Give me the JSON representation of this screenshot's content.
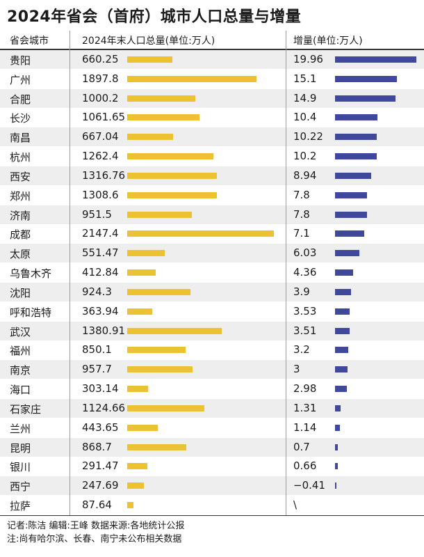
{
  "title": "2024年省会（首府）城市人口总量与增量",
  "headers": {
    "city": "省会城市",
    "population": "2024年末人口总量(单位:万人)",
    "increase": "增量(单位:万人)"
  },
  "footer": {
    "credits": "记者:陈洁  编辑:王峰  数据来源:各地统计公报",
    "note": "注:尚有哈尔滨、长春、南宁未公布相关数据"
  },
  "colors": {
    "population_bar": "#ecc233",
    "increase_bar": "#40489c",
    "row_shade": "#eeeeee"
  },
  "chart_data": {
    "type": "bar",
    "title": "2024年省会（首府）城市人口总量与增量",
    "categories": [
      "贵阳",
      "广州",
      "合肥",
      "长沙",
      "南昌",
      "杭州",
      "西安",
      "郑州",
      "济南",
      "成都",
      "太原",
      "乌鲁木齐",
      "沈阳",
      "呼和浩特",
      "武汉",
      "福州",
      "南京",
      "海口",
      "石家庄",
      "兰州",
      "昆明",
      "银川",
      "西宁",
      "拉萨"
    ],
    "series": [
      {
        "name": "2024年末人口总量(单位:万人)",
        "values": [
          660.25,
          1897.8,
          1000.2,
          1061.65,
          667.04,
          1262.4,
          1316.76,
          1308.6,
          951.5,
          2147.4,
          551.47,
          412.84,
          924.3,
          363.94,
          1380.91,
          850.1,
          957.7,
          303.14,
          1124.66,
          443.65,
          868.7,
          291.47,
          247.69,
          87.64
        ],
        "labels": [
          "660.25",
          "1897.8",
          "1000.2",
          "1061.65",
          "667.04",
          "1262.4",
          "1316.76",
          "1308.6",
          "951.5",
          "2147.4",
          "551.47",
          "412.84",
          "924.3",
          "363.94",
          "1380.91",
          "850.1",
          "957.7",
          "303.14",
          "1124.66",
          "443.65",
          "868.7",
          "291.47",
          "247.69",
          "87.64"
        ]
      },
      {
        "name": "增量(单位:万人)",
        "values": [
          19.96,
          15.1,
          14.9,
          10.4,
          10.22,
          10.2,
          8.94,
          7.8,
          7.8,
          7.1,
          6.03,
          4.36,
          3.9,
          3.53,
          3.51,
          3.2,
          3,
          2.98,
          1.31,
          1.14,
          0.7,
          0.66,
          -0.41,
          null
        ],
        "labels": [
          "19.96",
          "15.1",
          "14.9",
          "10.4",
          "10.22",
          "10.2",
          "8.94",
          "7.8",
          "7.8",
          "7.1",
          "6.03",
          "4.36",
          "3.9",
          "3.53",
          "3.51",
          "3.2",
          "3",
          "2.98",
          "1.31",
          "1.14",
          "0.7",
          "0.66",
          "−0.41",
          "\\"
        ]
      }
    ],
    "xlim_population": [
      0,
      2147.4
    ],
    "xlim_increase": [
      0,
      19.96
    ],
    "grid": false,
    "legend": "none"
  }
}
